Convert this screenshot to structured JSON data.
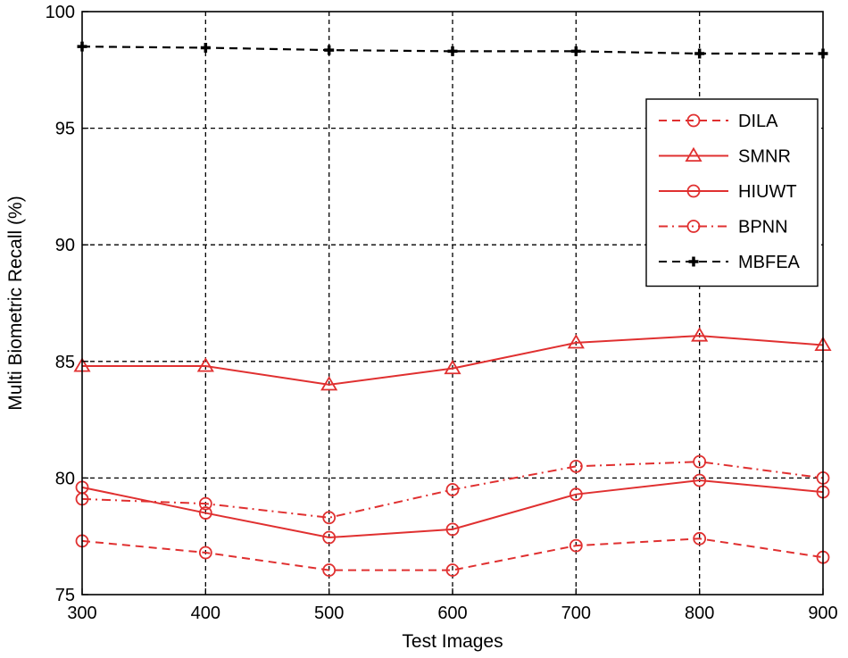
{
  "chart_data": {
    "type": "line",
    "xlabel": "Test Images",
    "ylabel": "Multi Biometric Recall (%)",
    "x": [
      300,
      400,
      500,
      600,
      700,
      800,
      900
    ],
    "xlim": [
      300,
      900
    ],
    "ylim": [
      75,
      100
    ],
    "xticks": [
      300,
      400,
      500,
      600,
      700,
      800,
      900
    ],
    "yticks": [
      75,
      80,
      85,
      90,
      95,
      100
    ],
    "grid": true,
    "legend_position": "top-right",
    "series": [
      {
        "name": "DILA",
        "values": [
          77.3,
          76.8,
          76.05,
          76.05,
          77.1,
          77.4,
          76.6
        ],
        "color": "#e03030",
        "dash": "dashed",
        "marker": "circle"
      },
      {
        "name": "SMNR",
        "values": [
          84.8,
          84.8,
          84.0,
          84.7,
          85.8,
          86.1,
          85.7
        ],
        "color": "#e03030",
        "dash": "solid",
        "marker": "triangle"
      },
      {
        "name": "HIUWT",
        "values": [
          79.6,
          78.5,
          77.45,
          77.8,
          79.3,
          79.9,
          79.4
        ],
        "color": "#e03030",
        "dash": "solid",
        "marker": "circle"
      },
      {
        "name": "BPNN",
        "values": [
          79.1,
          78.9,
          78.3,
          79.5,
          80.5,
          80.7,
          80.0
        ],
        "color": "#e03030",
        "dash": "dashdot",
        "marker": "circle"
      },
      {
        "name": "MBFEA",
        "values": [
          98.5,
          98.45,
          98.35,
          98.3,
          98.3,
          98.2,
          98.2
        ],
        "color": "#000000",
        "dash": "dashed",
        "marker": "plus"
      }
    ]
  }
}
